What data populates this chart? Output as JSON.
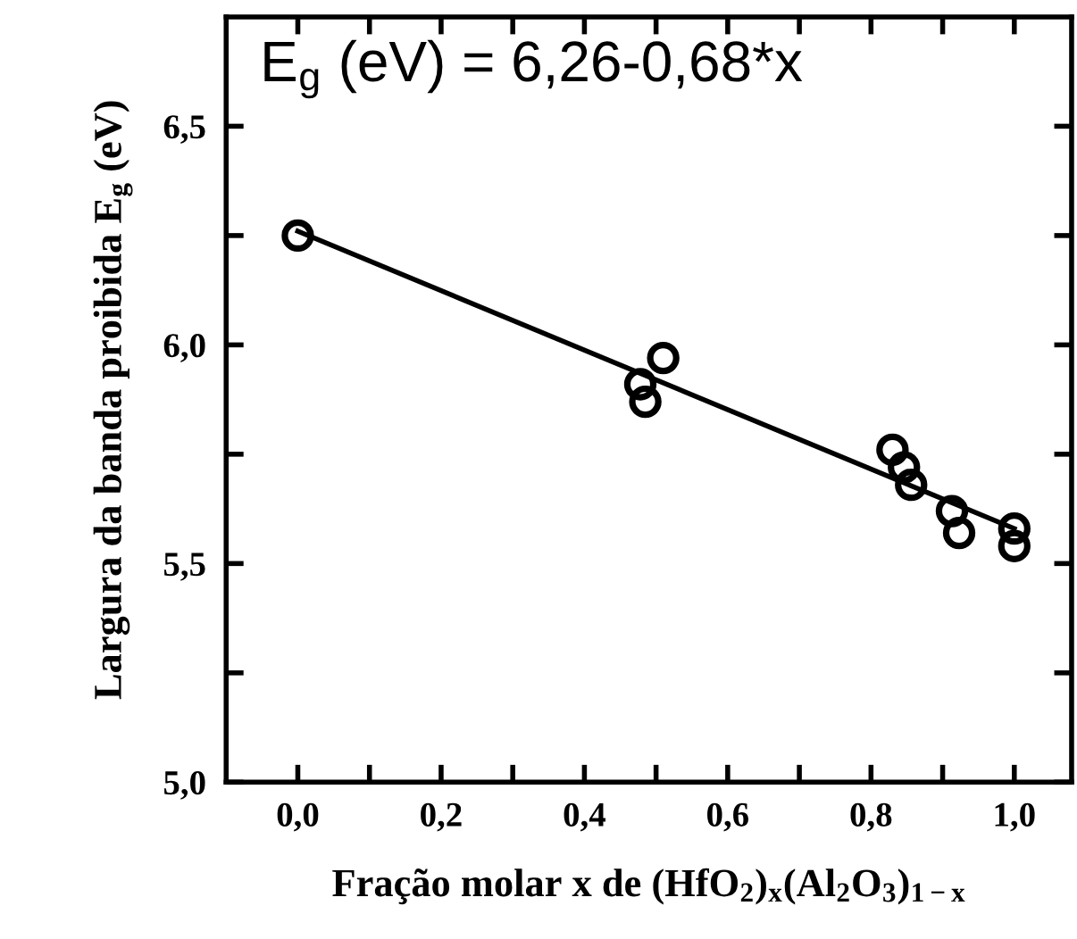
{
  "chart_data": {
    "type": "scatter",
    "xlabel": "Fração molar x de (HfO$_{2}$)$_{x}$(Al$_{2}$O$_{3}$)$_{1−x}$",
    "ylabel": "Largura da banda proibida E$_{g}$ (eV)",
    "annotations": [
      "E$_{g}$ (eV) = 6,26-0,68*x"
    ],
    "series": [
      {
        "color": "#000000",
        "marker": "circle",
        "x": [
          0.0,
          0.478,
          0.485,
          0.51,
          0.83,
          0.846,
          0.856,
          0.913,
          0.923,
          1.0,
          1.0
        ],
        "values": [
          6.25,
          5.91,
          5.87,
          5.97,
          5.76,
          5.72,
          5.68,
          5.62,
          5.57,
          5.58,
          5.54
        ]
      },
      {
        "type": "line",
        "color": "#000000",
        "marker": "none",
        "x": [
          0.0,
          1.0
        ],
        "values": [
          6.26,
          5.58
        ]
      }
    ],
    "xlim": [
      -0.1,
      1.08
    ],
    "ylim": [
      5.0,
      6.75
    ],
    "xticks": [
      {
        "value": 0.0,
        "label": "0,0"
      },
      {
        "value": 0.1,
        "label": null
      },
      {
        "value": 0.2,
        "label": "0,2"
      },
      {
        "value": 0.3,
        "label": null
      },
      {
        "value": 0.4,
        "label": "0,4"
      },
      {
        "value": 0.5,
        "label": null
      },
      {
        "value": 0.6,
        "label": "0,6"
      },
      {
        "value": 0.7,
        "label": null
      },
      {
        "value": 0.8,
        "label": "0,8"
      },
      {
        "value": 0.9,
        "label": null
      },
      {
        "value": 1.0,
        "label": "1,0"
      }
    ],
    "yticks": [
      {
        "value": 5.0,
        "label": "5,0"
      },
      {
        "value": 5.25,
        "label": null
      },
      {
        "value": 5.5,
        "label": "5,5"
      },
      {
        "value": 5.75,
        "label": null
      },
      {
        "value": 6.0,
        "label": "6,0"
      },
      {
        "value": 6.25,
        "label": null
      },
      {
        "value": 6.5,
        "label": "6,5"
      }
    ],
    "grid": false,
    "legend": false
  }
}
